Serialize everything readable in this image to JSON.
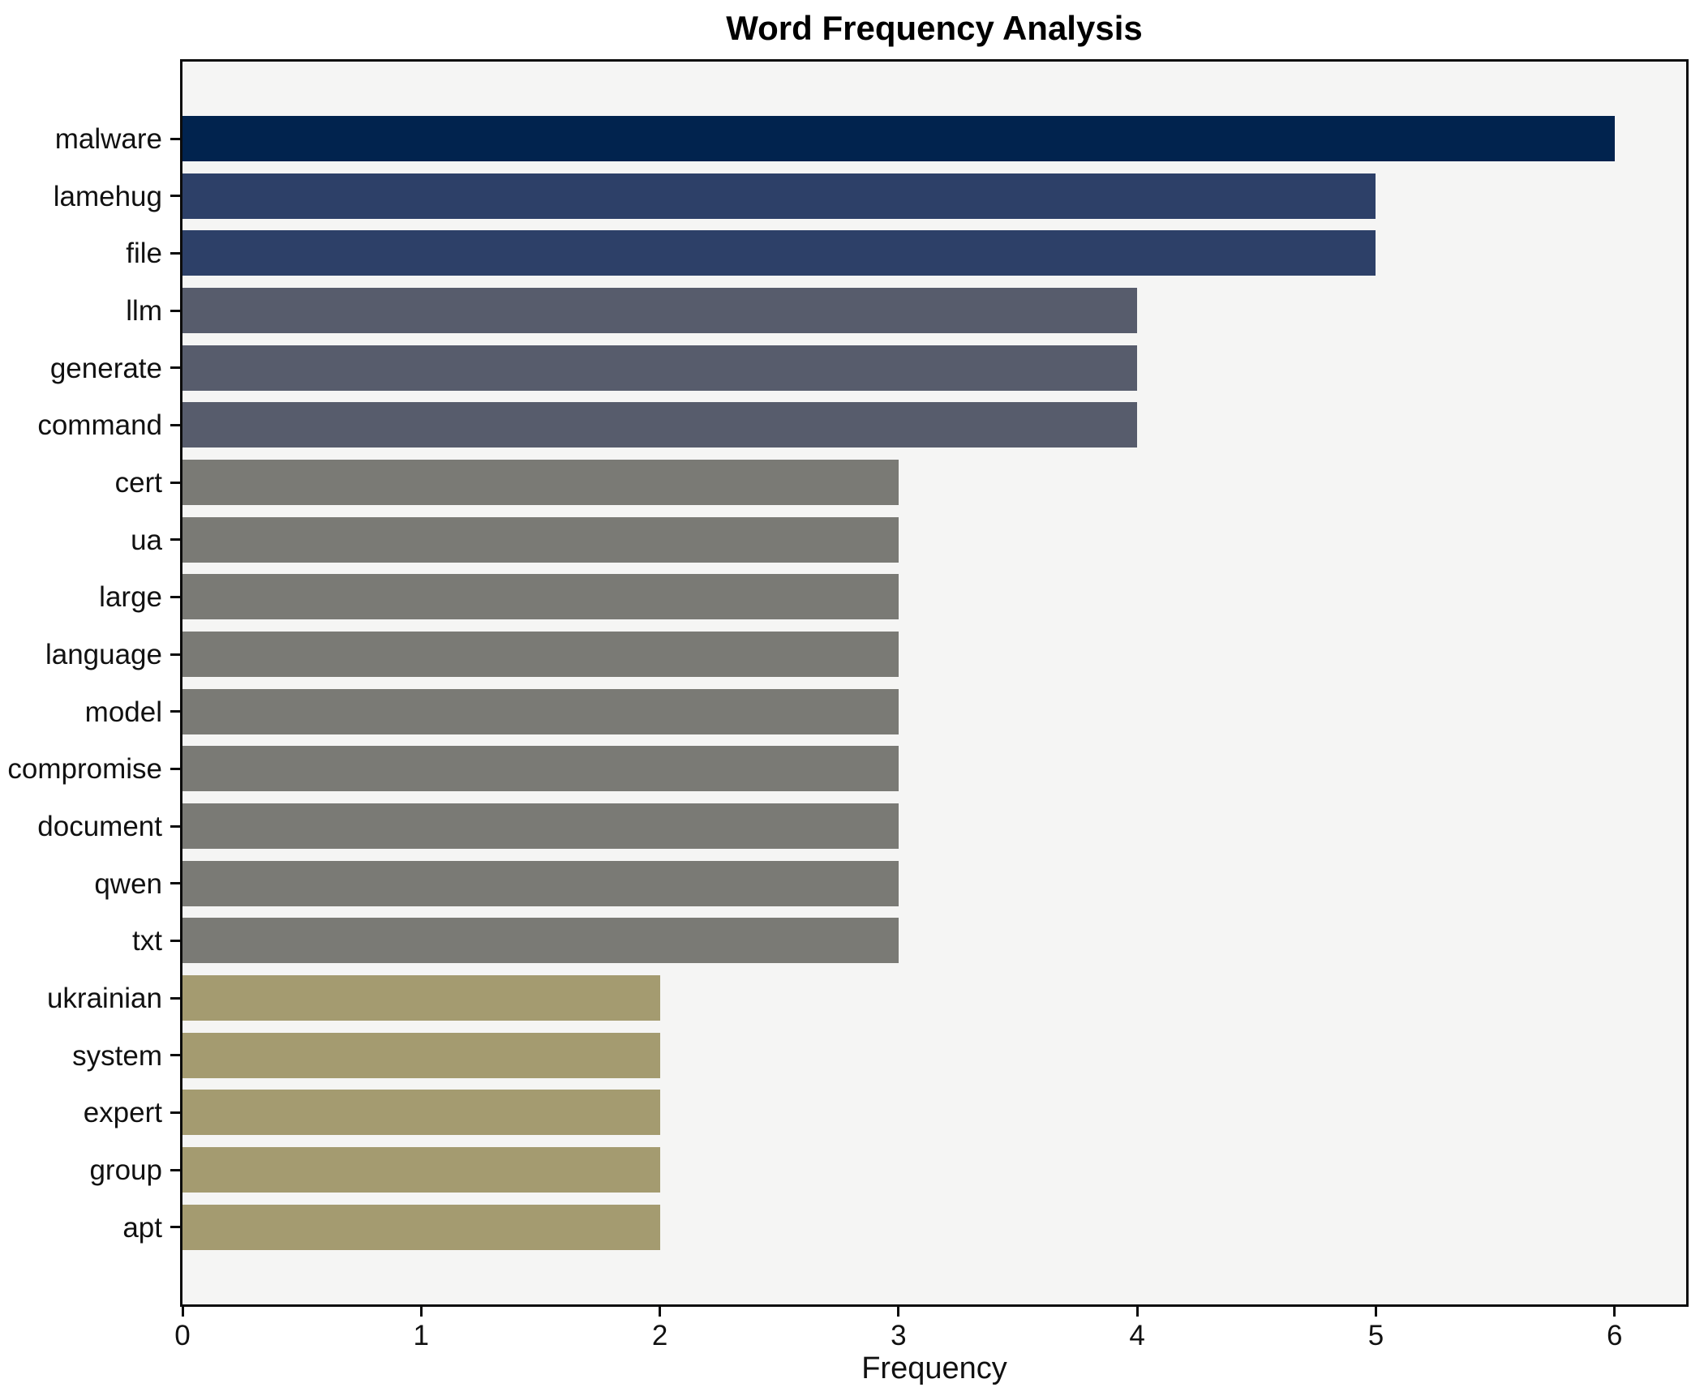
{
  "chart_data": {
    "type": "bar",
    "orientation": "horizontal",
    "title": "Word Frequency Analysis",
    "xlabel": "Frequency",
    "ylabel": "",
    "xlim": [
      0,
      6.3
    ],
    "xticks": [
      0,
      1,
      2,
      3,
      4,
      5,
      6
    ],
    "grid": false,
    "legend": null,
    "plot_background": "#f5f5f4",
    "spine_color": "#0b0b0b",
    "categories": [
      "malware",
      "lamehug",
      "file",
      "llm",
      "generate",
      "command",
      "cert",
      "ua",
      "large",
      "language",
      "model",
      "compromise",
      "document",
      "qwen",
      "txt",
      "ukrainian",
      "system",
      "expert",
      "group",
      "apt"
    ],
    "values": [
      6,
      5,
      5,
      4,
      4,
      4,
      3,
      3,
      3,
      3,
      3,
      3,
      3,
      3,
      3,
      2,
      2,
      2,
      2,
      2
    ],
    "bar_colors": [
      "#01234e",
      "#2d4068",
      "#2d4068",
      "#575c6c",
      "#575c6c",
      "#575c6c",
      "#7a7a75",
      "#7a7a75",
      "#7a7a75",
      "#7a7a75",
      "#7a7a75",
      "#7a7a75",
      "#7a7a75",
      "#7a7a75",
      "#7a7a75",
      "#a49b70",
      "#a49b70",
      "#a49b70",
      "#a49b70",
      "#a49b70"
    ]
  }
}
